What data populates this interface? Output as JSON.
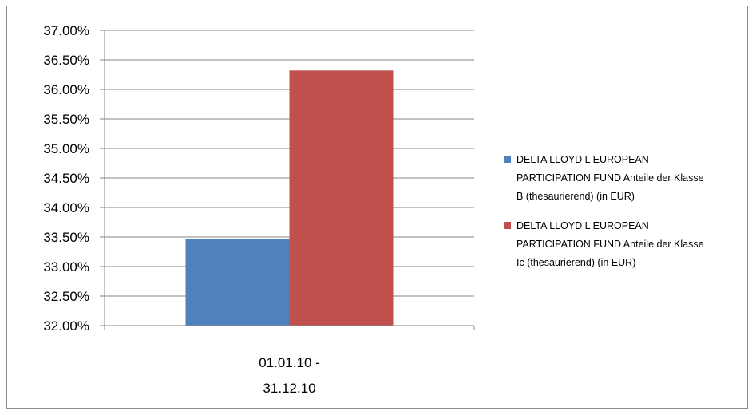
{
  "chart_data": {
    "type": "bar",
    "categories": [
      [
        "01.01.10 -",
        "31.12.10"
      ]
    ],
    "series": [
      {
        "name": "DELTA LLOYD L EUROPEAN PARTICIPATION FUND Anteile der Klasse B (thesaurierend) (in EUR)",
        "legend_lines": [
          "DELTA LLOYD L EUROPEAN",
          "PARTICIPATION FUND Anteile der Klasse",
          "B (thesaurierend) (in EUR)"
        ],
        "color": "#4f81bd",
        "values": [
          33.46
        ]
      },
      {
        "name": "DELTA LLOYD L EUROPEAN PARTICIPATION FUND Anteile der Klasse Ic (thesaurierend) (in EUR)",
        "legend_lines": [
          "DELTA LLOYD L EUROPEAN",
          "PARTICIPATION FUND Anteile der Klasse",
          "Ic (thesaurierend) (in EUR)"
        ],
        "color": "#c0504d",
        "values": [
          36.32
        ]
      }
    ],
    "yticks": [
      "32.00%",
      "32.50%",
      "33.00%",
      "33.50%",
      "34.00%",
      "34.50%",
      "35.00%",
      "35.50%",
      "36.00%",
      "36.50%",
      "37.00%"
    ],
    "ylim": [
      32,
      37
    ],
    "grid": true,
    "legend_position": "right"
  }
}
